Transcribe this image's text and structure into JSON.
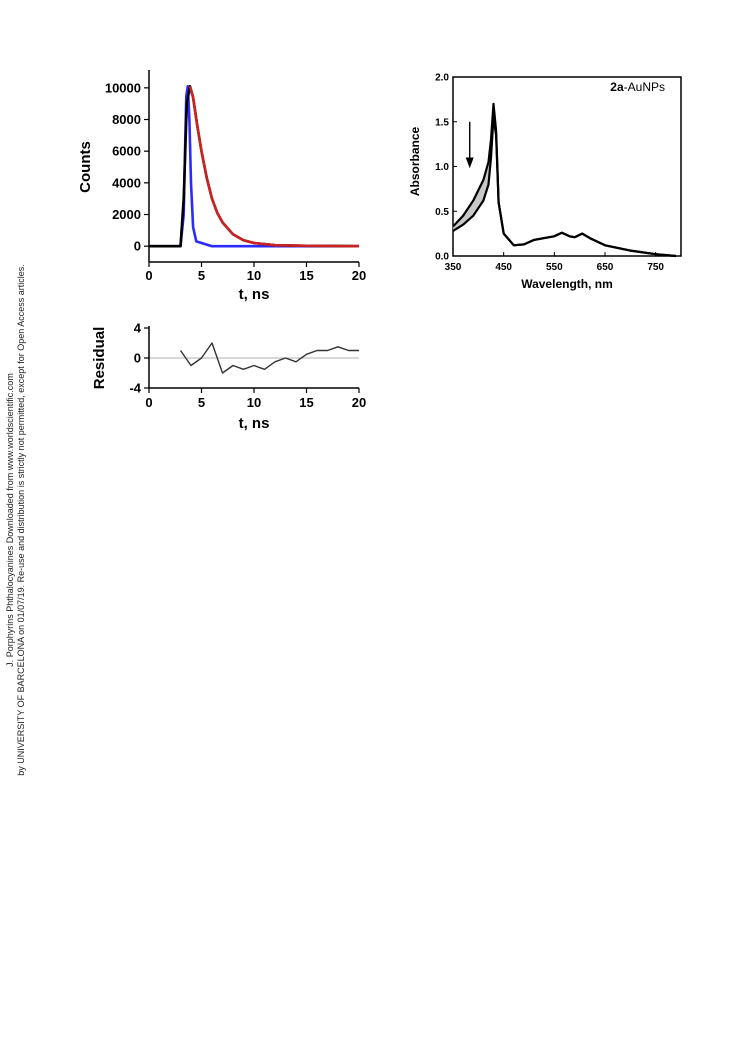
{
  "watermark": {
    "line1": "J. Porphyrins Phthalocyanines Downloaded from www.worldscientific.com",
    "line2": "by UNIVERSITY OF BARCELONA on 01/07/19. Re-use and distribution is strictly not permitted, except for Open Access articles."
  },
  "chart_data": [
    {
      "type": "line",
      "xlabel": "t, ns",
      "ylabel": "Counts",
      "xlim": [
        0,
        20
      ],
      "ylim": [
        -1000,
        11000
      ],
      "xticks": [
        0,
        5,
        10,
        15,
        20
      ],
      "yticks": [
        0,
        2000,
        4000,
        6000,
        8000,
        10000
      ],
      "grid": false,
      "series": [
        {
          "color": "#2b2bff",
          "x": [
            0,
            3.0,
            3.3,
            3.45,
            3.55,
            3.7,
            3.85,
            4.0,
            4.2,
            4.5,
            5.0,
            6.0,
            20
          ],
          "y": [
            0,
            0,
            2000,
            6500,
            9500,
            10100,
            8000,
            4000,
            1200,
            300,
            200,
            0,
            0
          ]
        },
        {
          "color": "#000000",
          "x": [
            0,
            3.0,
            3.3,
            3.6,
            3.9,
            4.2,
            4.6,
            5.0,
            5.5,
            6.0,
            6.5,
            7.0,
            8.0,
            9.0,
            10.0,
            12.0,
            15.0,
            20.0
          ],
          "y": [
            0,
            0,
            3000,
            9000,
            10100,
            9400,
            7600,
            6000,
            4300,
            3000,
            2100,
            1500,
            750,
            380,
            200,
            60,
            20,
            0
          ]
        },
        {
          "color": "#cc2222",
          "x": [
            3.9,
            4.2,
            4.6,
            5.0,
            5.5,
            6.0,
            6.5,
            7.0,
            8.0,
            9.0,
            10.0,
            12.0,
            15.0,
            20.0
          ],
          "y": [
            10100,
            9400,
            7600,
            6000,
            4300,
            3000,
            2100,
            1500,
            750,
            380,
            200,
            60,
            20,
            0
          ]
        }
      ]
    },
    {
      "type": "line",
      "xlabel": "t, ns",
      "ylabel": "Residual",
      "xlim": [
        0,
        20
      ],
      "ylim": [
        -4,
        4
      ],
      "xticks": [
        0,
        5,
        10,
        15,
        20
      ],
      "yticks": [
        -4,
        0,
        4
      ],
      "grid": false,
      "series": [
        {
          "color": "#333333",
          "x": [
            3,
            4,
            5,
            6,
            7,
            8,
            9,
            10,
            11,
            12,
            13,
            14,
            15,
            16,
            17,
            18,
            19,
            20
          ],
          "y": [
            1,
            -1,
            0,
            2,
            -2,
            -1,
            -1.5,
            -1,
            -1.5,
            -0.5,
            0,
            -0.5,
            0.5,
            1,
            1,
            1.5,
            1,
            1
          ]
        }
      ]
    },
    {
      "type": "line",
      "title": "2a-AuNPs",
      "title_bold": "2a",
      "title_rest": "-AuNPs",
      "xlabel": "Wavelength, nm",
      "ylabel": "Absorbance",
      "xlim": [
        350,
        800
      ],
      "ylim": [
        0,
        2.0
      ],
      "xticks": [
        350,
        450,
        550,
        650,
        750
      ],
      "yticks": [
        0.0,
        0.5,
        1.0,
        1.5,
        2.0
      ],
      "grid": false,
      "annotation": "downward arrow",
      "series": [
        {
          "color": "#000000",
          "x": [
            350,
            370,
            390,
            410,
            420,
            425,
            430,
            435,
            440,
            450,
            470,
            490,
            510,
            530,
            550,
            565,
            580,
            590,
            605,
            620,
            650,
            700,
            750,
            790
          ],
          "y": [
            0.33,
            0.45,
            0.62,
            0.85,
            1.05,
            1.3,
            1.7,
            1.4,
            0.6,
            0.25,
            0.12,
            0.13,
            0.18,
            0.2,
            0.22,
            0.26,
            0.22,
            0.21,
            0.25,
            0.2,
            0.12,
            0.06,
            0.02,
            0.0
          ]
        },
        {
          "color": "#000000",
          "x": [
            350,
            370,
            390,
            410,
            420,
            425,
            430,
            435,
            440,
            450,
            470,
            490,
            510,
            530,
            550,
            565,
            580,
            590,
            605,
            620,
            650,
            700,
            750,
            790
          ],
          "y": [
            0.28,
            0.35,
            0.45,
            0.62,
            0.8,
            1.1,
            1.55,
            1.35,
            0.6,
            0.25,
            0.12,
            0.13,
            0.18,
            0.2,
            0.22,
            0.26,
            0.22,
            0.21,
            0.25,
            0.2,
            0.12,
            0.06,
            0.02,
            0.0
          ]
        }
      ]
    }
  ]
}
